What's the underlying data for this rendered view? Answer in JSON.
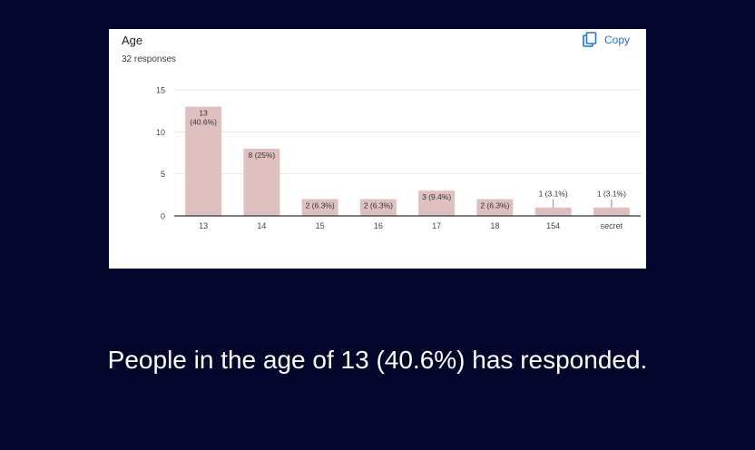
{
  "card": {
    "question": "Age",
    "responses": "32 responses",
    "copy_label": "Copy",
    "copy_icon": "copy-icon"
  },
  "colors": {
    "background": "#04052a",
    "bar": "#dfc0c0",
    "accent": "#1a73e8"
  },
  "chart_data": {
    "type": "bar",
    "categories": [
      "13",
      "14",
      "15",
      "16",
      "17",
      "18",
      "154",
      "secret"
    ],
    "values": [
      13,
      8,
      2,
      2,
      3,
      2,
      1,
      1
    ],
    "labels": [
      "13\n(40.6%)",
      "8 (25%)",
      "2 (6.3%)",
      "2 (6.3%)",
      "3 (9.4%)",
      "2 (6.3%)",
      "1 (3.1%)",
      "1 (3.1%)"
    ],
    "y_ticks": [
      0,
      5,
      10,
      15
    ],
    "ylim": [
      0,
      15
    ],
    "grid": true,
    "title": "",
    "xlabel": "",
    "ylabel": ""
  },
  "caption": "People in the age of 13 (40.6%) has responded."
}
